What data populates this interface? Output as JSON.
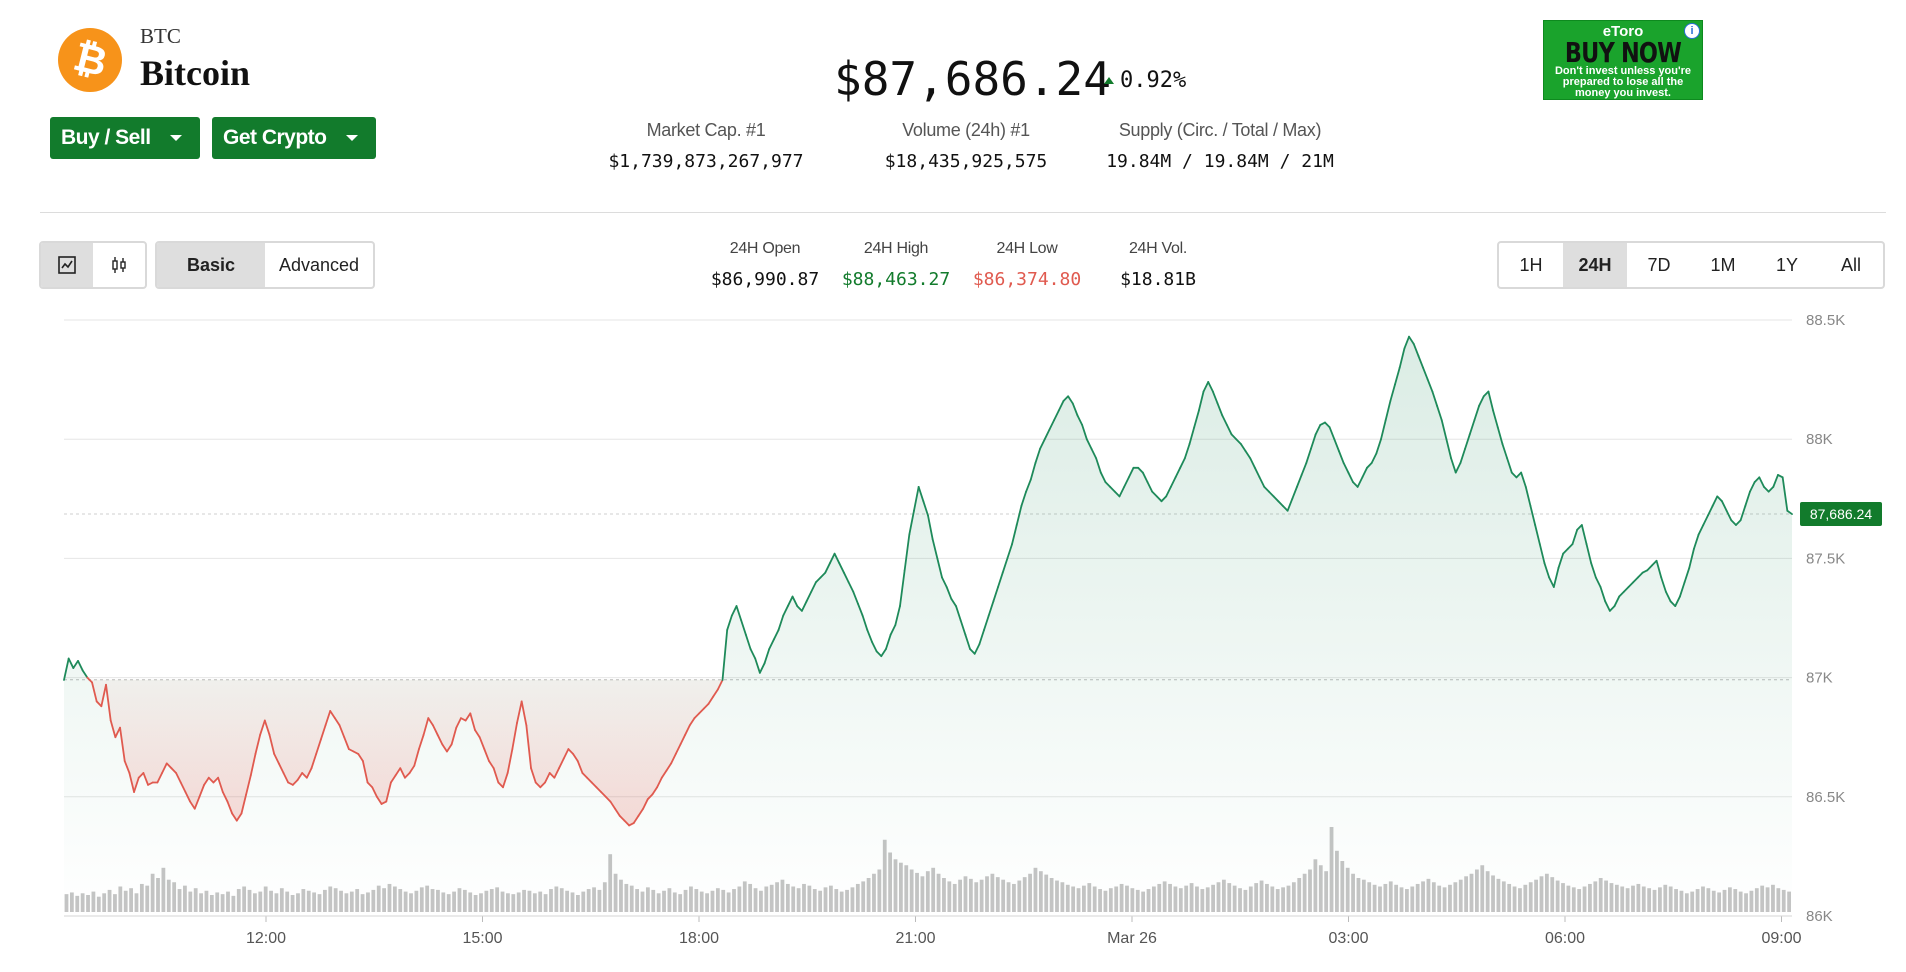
{
  "coin": {
    "symbol": "BTC",
    "name": "Bitcoin",
    "logo_glyph": "₿",
    "logo_color": "#f7931a"
  },
  "actions": {
    "buy_sell": "Buy / Sell",
    "get_crypto": "Get Crypto"
  },
  "price": {
    "value": "$87,686.24",
    "change": "0.92%",
    "direction": "up"
  },
  "stats": [
    {
      "label": "Market Cap. #1",
      "value": "$1,739,873,267,977"
    },
    {
      "label": "Volume (24h) #1",
      "value": "$18,435,925,575"
    },
    {
      "label": "Supply (Circ. / Total / Max)",
      "value": "19.84M / 19.84M / 21M"
    }
  ],
  "ad": {
    "brand": "eToro",
    "cta": "BUY NOW",
    "disclaimer": "Don't invest unless you're prepared to lose all the money you invest.",
    "info_glyph": "i"
  },
  "controls": {
    "chart_types": [
      "line-chart-icon",
      "candlestick-icon"
    ],
    "modes": [
      "Basic",
      "Advanced"
    ],
    "active_mode": "Basic",
    "ranges": [
      "1H",
      "24H",
      "7D",
      "1M",
      "1Y",
      "All"
    ],
    "active_range": "24H"
  },
  "daily": [
    {
      "label": "24H Open",
      "value": "$86,990.87",
      "color": "#111111"
    },
    {
      "label": "24H High",
      "value": "$88,463.27",
      "color": "#127b2c"
    },
    {
      "label": "24H Low",
      "value": "$86,374.80",
      "color": "#e05a4f"
    },
    {
      "label": "24H Vol.",
      "value": "$18.81B",
      "color": "#111111"
    }
  ],
  "colors": {
    "up": "#127b2c",
    "down": "#e05a4f",
    "line_up": "#1e8a5a",
    "volume": "#c4c4c4",
    "accent_green": "#127b2c"
  },
  "chart_data": {
    "type": "line",
    "title": "",
    "xlabel": "",
    "ylabel": "",
    "y_ticks": [
      "88.5K",
      "88K",
      "87.5K",
      "87K",
      "86.5K",
      "86K"
    ],
    "ylim": [
      86000,
      88500
    ],
    "x_ticks": [
      "12:00",
      "15:00",
      "18:00",
      "21:00",
      "Mar 26",
      "03:00",
      "06:00",
      "09:00"
    ],
    "reference_price": 86990.87,
    "last_price_label": "87,686.24",
    "last_price": 87686.24,
    "series": [
      {
        "values": [
          86990,
          87080,
          87040,
          87070,
          87030,
          87000,
          86980,
          86900,
          86880,
          86970,
          86820,
          86750,
          86790,
          86650,
          86600,
          86520,
          86580,
          86600,
          86550,
          86560,
          86560,
          86600,
          86640,
          86620,
          86600,
          86560,
          86520,
          86480,
          86450,
          86500,
          86550,
          86580,
          86560,
          86580,
          86520,
          86480,
          86430,
          86400,
          86430,
          86510,
          86590,
          86680,
          86760,
          86820,
          86760,
          86680,
          86640,
          86600,
          86560,
          86550,
          86570,
          86600,
          86580,
          86620,
          86680,
          86740,
          86800,
          86860,
          86830,
          86800,
          86750,
          86700,
          86690,
          86680,
          86650,
          86560,
          86540,
          86500,
          86470,
          86480,
          86560,
          86590,
          86620,
          86580,
          86600,
          86630,
          86700,
          86760,
          86830,
          86800,
          86760,
          86720,
          86690,
          86720,
          86790,
          86830,
          86820,
          86850,
          86780,
          86750,
          86700,
          86650,
          86620,
          86560,
          86540,
          86600,
          86700,
          86810,
          86900,
          86800,
          86620,
          86560,
          86540,
          86560,
          86600,
          86580,
          86620,
          86660,
          86700,
          86680,
          86650,
          86600,
          86580,
          86560,
          86540,
          86520,
          86500,
          86480,
          86450,
          86420,
          86400,
          86380,
          86390,
          86420,
          86450,
          86490,
          86510,
          86540,
          86580,
          86610,
          86640,
          86680,
          86720,
          86760,
          86800,
          86830,
          86850,
          86870,
          86890,
          86920,
          86950,
          86990,
          87200,
          87260,
          87300,
          87240,
          87180,
          87120,
          87080,
          87020,
          87060,
          87120,
          87160,
          87200,
          87260,
          87300,
          87340,
          87300,
          87280,
          87320,
          87360,
          87400,
          87420,
          87440,
          87480,
          87520,
          87480,
          87440,
          87400,
          87360,
          87310,
          87260,
          87200,
          87150,
          87110,
          87090,
          87120,
          87180,
          87220,
          87300,
          87450,
          87600,
          87700,
          87800,
          87740,
          87680,
          87580,
          87500,
          87420,
          87380,
          87330,
          87300,
          87240,
          87180,
          87120,
          87100,
          87140,
          87200,
          87260,
          87320,
          87380,
          87440,
          87500,
          87560,
          87640,
          87720,
          87780,
          87830,
          87900,
          87960,
          88000,
          88040,
          88080,
          88120,
          88160,
          88180,
          88150,
          88100,
          88060,
          88000,
          87960,
          87920,
          87860,
          87820,
          87800,
          87780,
          87760,
          87800,
          87840,
          87880,
          87880,
          87860,
          87820,
          87780,
          87760,
          87740,
          87760,
          87800,
          87840,
          87880,
          87920,
          87980,
          88050,
          88120,
          88200,
          88240,
          88200,
          88150,
          88100,
          88060,
          88020,
          88000,
          87980,
          87950,
          87920,
          87880,
          87840,
          87800,
          87780,
          87760,
          87740,
          87720,
          87700,
          87750,
          87800,
          87850,
          87900,
          87960,
          88020,
          88060,
          88070,
          88050,
          88000,
          87950,
          87900,
          87860,
          87820,
          87800,
          87840,
          87880,
          87900,
          87940,
          88000,
          88080,
          88160,
          88230,
          88300,
          88380,
          88430,
          88400,
          88350,
          88300,
          88250,
          88200,
          88140,
          88080,
          88000,
          87920,
          87860,
          87900,
          87960,
          88020,
          88080,
          88140,
          88180,
          88200,
          88120,
          88050,
          87980,
          87920,
          87860,
          87840,
          87860,
          87800,
          87720,
          87640,
          87560,
          87480,
          87420,
          87380,
          87460,
          87520,
          87540,
          87560,
          87620,
          87640,
          87560,
          87480,
          87420,
          87380,
          87320,
          87280,
          87300,
          87340,
          87360,
          87380,
          87400,
          87420,
          87440,
          87450,
          87470,
          87490,
          87420,
          87360,
          87320,
          87300,
          87340,
          87400,
          87460,
          87540,
          87600,
          87640,
          87680,
          87720,
          87760,
          87740,
          87700,
          87660,
          87640,
          87660,
          87720,
          87780,
          87820,
          87840,
          87800,
          87780,
          87800,
          87850,
          87840,
          87700,
          87686
        ]
      }
    ],
    "volume": [
      0.21,
      0.23,
      0.19,
      0.22,
      0.2,
      0.24,
      0.18,
      0.22,
      0.26,
      0.21,
      0.3,
      0.25,
      0.28,
      0.22,
      0.33,
      0.31,
      0.45,
      0.4,
      0.52,
      0.38,
      0.35,
      0.27,
      0.31,
      0.24,
      0.28,
      0.22,
      0.25,
      0.2,
      0.23,
      0.21,
      0.24,
      0.19,
      0.27,
      0.3,
      0.26,
      0.22,
      0.24,
      0.3,
      0.25,
      0.22,
      0.28,
      0.24,
      0.2,
      0.22,
      0.27,
      0.25,
      0.23,
      0.21,
      0.26,
      0.3,
      0.28,
      0.25,
      0.22,
      0.24,
      0.27,
      0.21,
      0.23,
      0.26,
      0.31,
      0.28,
      0.33,
      0.3,
      0.27,
      0.24,
      0.22,
      0.25,
      0.29,
      0.31,
      0.27,
      0.26,
      0.23,
      0.21,
      0.24,
      0.28,
      0.26,
      0.23,
      0.2,
      0.22,
      0.25,
      0.27,
      0.29,
      0.24,
      0.22,
      0.21,
      0.23,
      0.26,
      0.25,
      0.22,
      0.24,
      0.21,
      0.27,
      0.3,
      0.28,
      0.25,
      0.23,
      0.2,
      0.24,
      0.27,
      0.29,
      0.26,
      0.35,
      0.68,
      0.45,
      0.38,
      0.33,
      0.31,
      0.27,
      0.24,
      0.29,
      0.26,
      0.22,
      0.25,
      0.28,
      0.23,
      0.21,
      0.26,
      0.3,
      0.27,
      0.24,
      0.22,
      0.25,
      0.28,
      0.26,
      0.23,
      0.27,
      0.3,
      0.36,
      0.33,
      0.28,
      0.25,
      0.3,
      0.32,
      0.35,
      0.38,
      0.33,
      0.3,
      0.28,
      0.33,
      0.31,
      0.27,
      0.25,
      0.29,
      0.31,
      0.27,
      0.24,
      0.26,
      0.29,
      0.33,
      0.36,
      0.4,
      0.45,
      0.5,
      0.85,
      0.7,
      0.62,
      0.58,
      0.55,
      0.5,
      0.46,
      0.42,
      0.48,
      0.52,
      0.45,
      0.4,
      0.36,
      0.33,
      0.38,
      0.42,
      0.39,
      0.35,
      0.38,
      0.42,
      0.45,
      0.41,
      0.38,
      0.35,
      0.33,
      0.37,
      0.41,
      0.45,
      0.52,
      0.48,
      0.44,
      0.4,
      0.37,
      0.35,
      0.32,
      0.3,
      0.28,
      0.31,
      0.34,
      0.3,
      0.27,
      0.25,
      0.28,
      0.3,
      0.33,
      0.31,
      0.28,
      0.26,
      0.24,
      0.27,
      0.3,
      0.33,
      0.36,
      0.33,
      0.3,
      0.28,
      0.31,
      0.34,
      0.3,
      0.27,
      0.29,
      0.32,
      0.35,
      0.38,
      0.34,
      0.31,
      0.28,
      0.26,
      0.3,
      0.34,
      0.37,
      0.33,
      0.3,
      0.27,
      0.29,
      0.31,
      0.35,
      0.4,
      0.45,
      0.5,
      0.62,
      0.55,
      0.48,
      1.0,
      0.72,
      0.6,
      0.52,
      0.45,
      0.4,
      0.38,
      0.35,
      0.32,
      0.3,
      0.33,
      0.36,
      0.32,
      0.29,
      0.27,
      0.3,
      0.33,
      0.36,
      0.39,
      0.35,
      0.31,
      0.29,
      0.32,
      0.35,
      0.38,
      0.42,
      0.45,
      0.5,
      0.55,
      0.48,
      0.43,
      0.39,
      0.36,
      0.33,
      0.3,
      0.28,
      0.32,
      0.35,
      0.38,
      0.42,
      0.45,
      0.41,
      0.37,
      0.34,
      0.31,
      0.29,
      0.27,
      0.3,
      0.33,
      0.36,
      0.4,
      0.37,
      0.34,
      0.32,
      0.3,
      0.28,
      0.31,
      0.33,
      0.3,
      0.28,
      0.26,
      0.29,
      0.32,
      0.3,
      0.27,
      0.25,
      0.22,
      0.24,
      0.27,
      0.3,
      0.28,
      0.25,
      0.23,
      0.26,
      0.29,
      0.27,
      0.24,
      0.22,
      0.25,
      0.28,
      0.31,
      0.29,
      0.32,
      0.28,
      0.26,
      0.24
    ]
  }
}
